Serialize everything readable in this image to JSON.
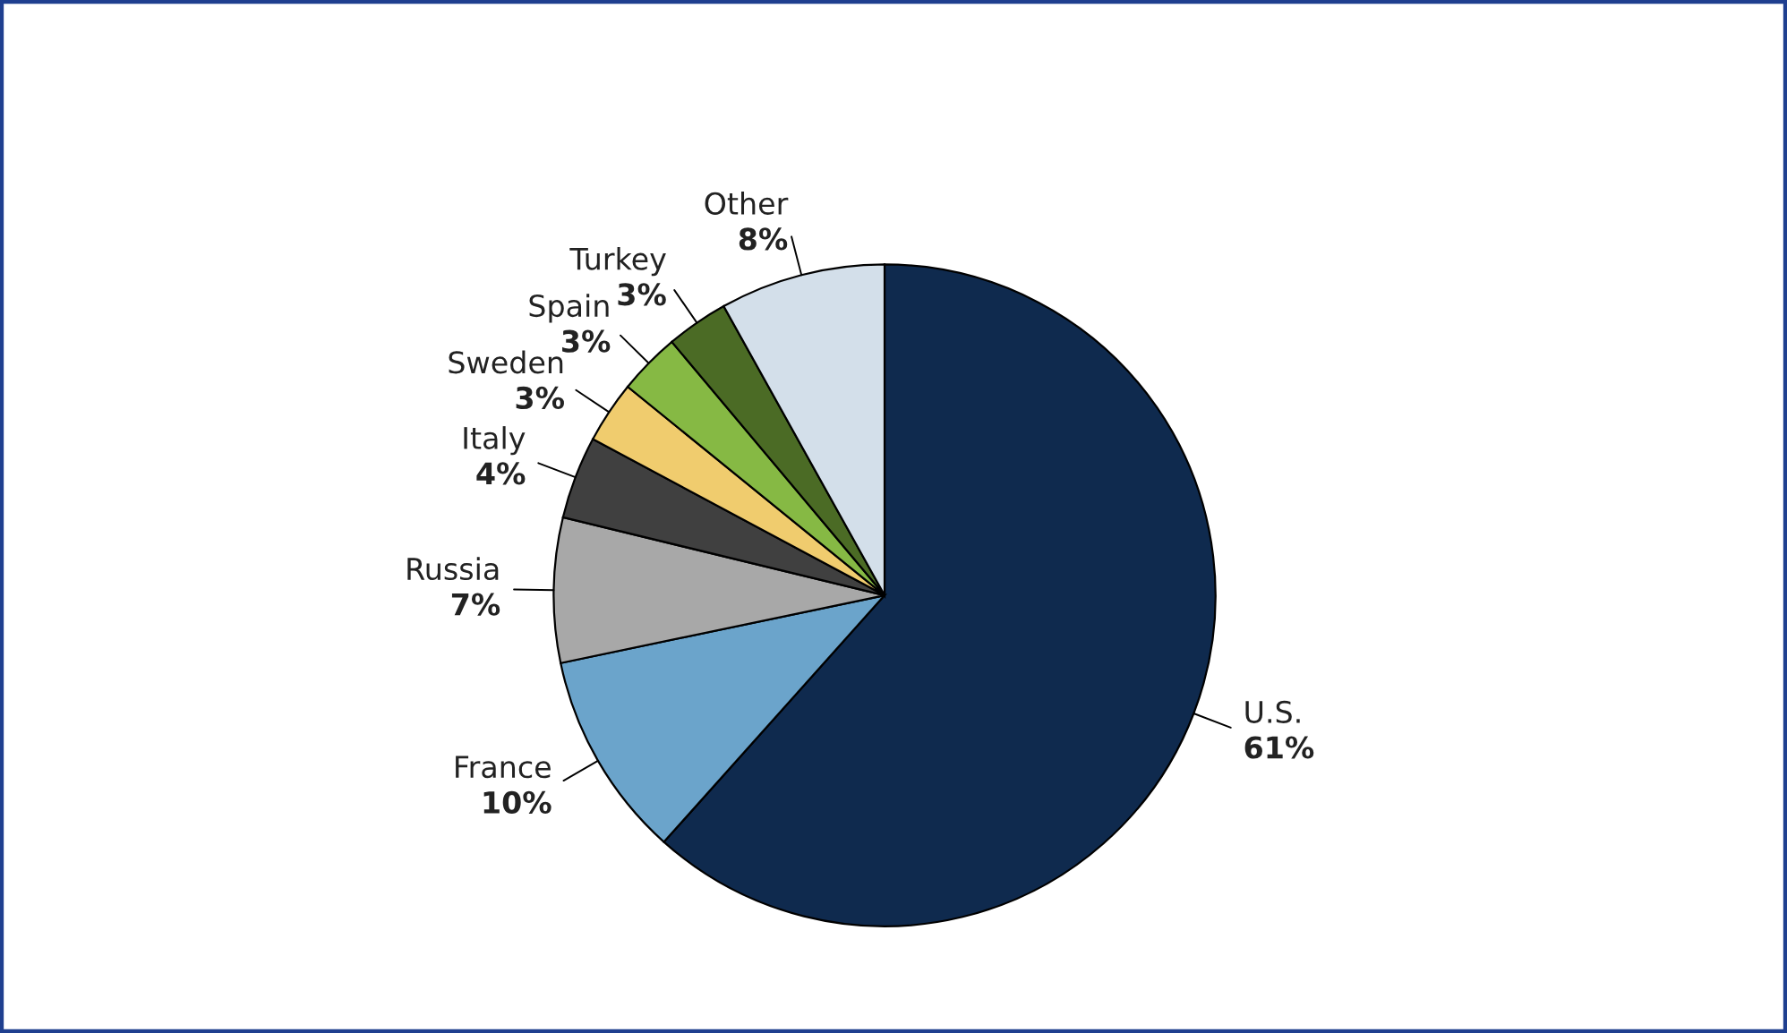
{
  "chart_data": {
    "type": "pie",
    "categories": [
      "U.S.",
      "France",
      "Russia",
      "Italy",
      "Sweden",
      "Spain",
      "Turkey",
      "Other"
    ],
    "values": [
      61,
      10,
      7,
      4,
      3,
      3,
      3,
      8
    ],
    "value_labels": [
      "61%",
      "10%",
      "7%",
      "4%",
      "3%",
      "3%",
      "3%",
      "8%"
    ],
    "colors": [
      "#0f2a4e",
      "#6ba4cb",
      "#a8a8a8",
      "#404040",
      "#f0cc6e",
      "#86b944",
      "#4b6b25",
      "#d3dfea"
    ]
  }
}
